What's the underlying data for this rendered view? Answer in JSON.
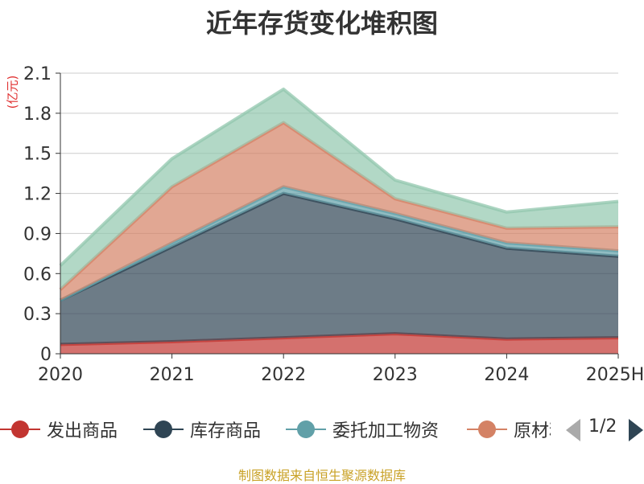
{
  "chart_data": {
    "type": "area",
    "title": "近年存货变化堆积图",
    "unit_label": "(亿元)",
    "x": [
      "2020",
      "2021",
      "2022",
      "2023",
      "2024",
      "2025H"
    ],
    "ylim": [
      0,
      2.1
    ],
    "yticks": [
      "0",
      "0.3",
      "0.6",
      "0.9",
      "1.2",
      "1.5",
      "1.8",
      "2.1"
    ],
    "stacked": true,
    "grid": true,
    "legend_position": "bottom",
    "series": [
      {
        "name": "发出商品",
        "values": [
          0.07,
          0.09,
          0.12,
          0.15,
          0.11,
          0.12
        ],
        "color": "#c23531"
      },
      {
        "name": "库存商品",
        "values": [
          0.33,
          0.71,
          1.08,
          0.86,
          0.68,
          0.61
        ],
        "color": "#2f4554"
      },
      {
        "name": "委托加工物资",
        "values": [
          0.0,
          0.03,
          0.05,
          0.04,
          0.04,
          0.04
        ],
        "color": "#61a0a8"
      },
      {
        "name": "原材料",
        "values": [
          0.08,
          0.42,
          0.48,
          0.11,
          0.11,
          0.18
        ],
        "color": "#d48265"
      },
      {
        "name": "",
        "values": [
          0.18,
          0.21,
          0.25,
          0.14,
          0.12,
          0.19
        ],
        "color": "#91c7ae"
      }
    ]
  },
  "legend": {
    "items": [
      {
        "label": "发出商品",
        "color": "#c23531"
      },
      {
        "label": "库存商品",
        "color": "#2f4554"
      },
      {
        "label": "委托加工物资",
        "color": "#61a0a8"
      },
      {
        "label": "原材料",
        "color": "#d48265"
      }
    ],
    "page_indicator": "1/2"
  },
  "source_note": "制图数据来自恒生聚源数据库"
}
